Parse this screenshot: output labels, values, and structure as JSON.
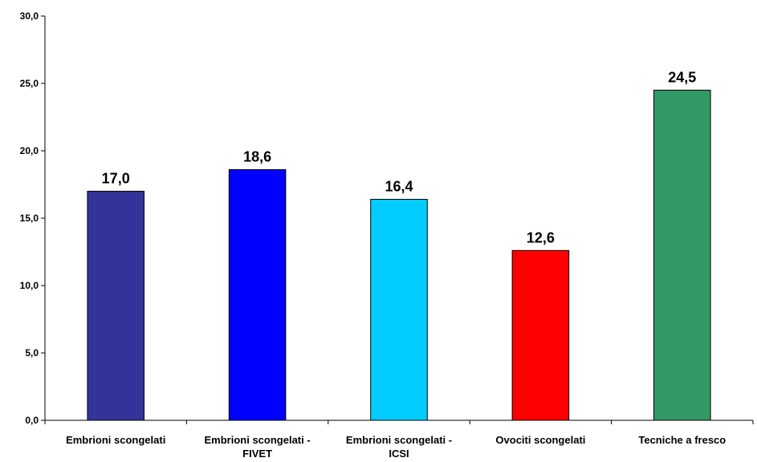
{
  "chart_data": {
    "type": "bar",
    "title": "",
    "xlabel": "",
    "ylabel": "",
    "categories": [
      [
        "Embrioni scongelati"
      ],
      [
        "Embrioni scongelati -",
        "FIVET"
      ],
      [
        "Embrioni scongelati -",
        "ICSI"
      ],
      [
        "Ovociti scongelati"
      ],
      [
        "Tecniche a fresco"
      ]
    ],
    "values": [
      17.0,
      18.6,
      16.4,
      12.6,
      24.5
    ],
    "value_labels": [
      "17,0",
      "18,6",
      "16,4",
      "12,6",
      "24,5"
    ],
    "colors": [
      "#333399",
      "#0000FF",
      "#00CCFF",
      "#FF0000",
      "#339966"
    ],
    "ylim": [
      0,
      30
    ],
    "yticks": [
      0,
      5,
      10,
      15,
      20,
      25,
      30
    ],
    "ytick_labels": [
      "0,0",
      "5,0",
      "10,0",
      "15,0",
      "20,0",
      "25,0",
      "30,0"
    ],
    "grid": false,
    "legend": "none"
  }
}
